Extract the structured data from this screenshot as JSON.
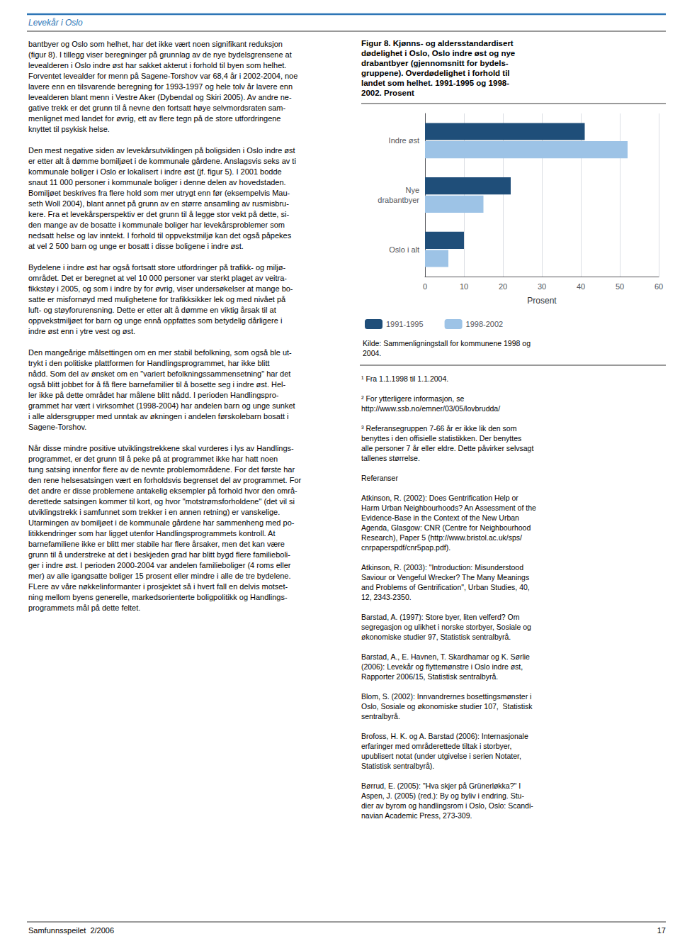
{
  "chart_data": {
    "type": "bar",
    "orientation": "horizontal",
    "title": "Figur 8. Kjønns- og aldersstandardisert\ndødelighet i Oslo, Oslo indre øst og nye\ndrabantbyer (gjennomsnitt for bydels-\ngruppene). Overdødelighet i forhold til\nlandet som helhet. 1991-1995 og 1998-\n2002. Prosent",
    "categories": [
      "Indre øst",
      "Nye\ndrabantbyer",
      "Oslo i alt"
    ],
    "series": [
      {
        "name": "1991-1995",
        "color": "#1f4e79",
        "values": [
          41,
          22,
          10
        ]
      },
      {
        "name": "1998-2002",
        "color": "#9dc3e6",
        "values": [
          52,
          15,
          6
        ]
      }
    ],
    "xlabel": "Prosent",
    "xlim": [
      0,
      60
    ],
    "xticks": [
      0,
      10,
      20,
      30,
      40,
      50,
      60
    ],
    "grid": true,
    "legend": "bottom",
    "annotations": [
      "Levekår i Oslo",
      "bantbyer og Oslo som helhet, har det ikke vært noen signifikant reduksjon\n(figur 8). I tillegg viser beregninger på grunnlag av de nye bydelsgrensene at\nlevealderen i Oslo indre øst har sakket akterut i forhold til byen som helhet.\nForventet levealder for menn på Sagene-Torshov var 68,4 år i 2002-2004, noe\nlavere enn en tilsvarende beregning for 1993-1997 og hele tolv år lavere enn\nlevealderen blant menn i Vestre Aker (Dybendal og Skiri 2005). Av andre ne-\ngative trekk er det grunn til å nevne den fortsatt høye selvmordsraten sam-\nmenlignet med landet for øvrig, ett av flere tegn på de store utfordringene\nknyttet til psykisk helse.\n\nDen mest negative siden av levekårsutviklingen på boligsiden i Oslo indre øst\ner etter alt å dømme bomiljøet i de kommunale gårdene. Anslagsvis seks av ti\nkommunale boliger i Oslo er lokalisert i indre øst (jf. figur 5). I 2001 bodde\nsnaut 11 000 personer i kommunale boliger i denne delen av hovedstaden.\nBomiljøet beskrives fra flere hold som mer utrygt enn før (eksempelvis Mau-\nseth Woll 2004), blant annet på grunn av en større ansamling av rusmisbru-\nkere. Fra et levekårsperspektiv er det grunn til å legge stor vekt på dette, si-\nden mange av de bosatte i kommunale boliger har levekårsproblemer som\nnedsatt helse og lav inntekt. I forhold til oppvekstmiljø kan det også påpekes\nat vel 2 500 barn og unge er bosatt i disse boligene i indre øst.\n\nBydelene i indre øst har også fortsatt store utfordringer på trafikk- og miljø-\nområdet. Det er beregnet at vel 10 000 personer var sterkt plaget av veitra-\nfikkstøy i 2005, og som i indre by for øvrig, viser undersøkelser at mange bo-\nsatte er misfornøyd med mulighetene for trafikksikker lek og med nivået på\nluft- og støyforurensning. Dette er etter alt å dømme en viktig årsak til at\noppvekstmiljøet for barn og unge ennå oppfattes som betydelig dårligere i\nindre øst enn i ytre vest og øst.\n\nDen mangeårige målsettingen om en mer stabil befolkning, som også ble ut-\ntrykt i den politiske plattformen for Handlingsprogrammet, har ikke blitt\nnådd. Som del av ønsket om en \"variert befolkningssammensetning\" har det\nogså blitt jobbet for å få flere barnefamilier til å bosette seg i indre øst. Hel-\nler ikke på dette området har målene blitt nådd. I perioden Handlingspro-\ngrammet har vært i virksomhet (1998-2004) har andelen barn og unge sunket\ni alle aldersgrupper med unntak av økningen i andelen førskolebarn bosatt i\nSagene-Torshov.\n\nNår disse mindre positive utviklingstrekkene skal vurderes i lys av Handlings-\nprogrammet, er det grunn til å peke på at programmet ikke har hatt noen\ntung satsing innenfor flere av de nevnte problemområdene. For det første har\nden rene helsesatsingen vært en forholdsvis begrenset del av programmet. For\ndet andre er disse problemene antakelig eksempler på forhold hvor den områ-\nderettede satsingen kommer til kort, og hvor \"motstrømsforholdene\" (det vil si\nutviklingstrekk i samfunnet som trekker i en annen retning) er vanskelige.\nUtarmingen av bomiljøet i de kommunale gårdene har sammenheng med po-\nlitikkendringer som har ligget utenfor Handlingsprogrammets kontroll. At\nbarnefamiliene ikke er blitt mer stabile har flere årsaker, men det kan være\ngrunn til å understreke at det i beskjeden grad har blitt bygd flere familieboli-\nger i indre øst. I perioden 2000-2004 var andelen familieboliger (4 roms eller\nmer) av alle igangsatte boliger 15 prosent eller mindre i alle de tre bydelene.\nFLere av våre nøkkelinformanter i prosjektet så i hvert fall en delvis motset-\nning mellom byens generelle, markedsorienterte boligpolitikk og Handlings-\nprogrammets mål på dette feltet.",
      "Kilde: Sammenligningstall for kommunene 1998 og\n2004.",
      "¹ Fra 1.1.1998 til 1.1.2004.\n\n² For ytterligere informasjon, se\nhttp://www.ssb.no/emner/03/05/lovbrudda/\n\n³ Referansegruppen 7-66 år er ikke lik den som\nbenyttes i den offisielle statistikken. Der benyttes\nalle personer 7 år eller eldre. Dette påvirker selvsagt\ntallenes størrelse.\n\nReferanser\n\nAtkinson, R. (2002): Does Gentrification Help or\nHarm Urban Neighbourhoods? An Assessment of the\nEvidence-Base in the Context of the New Urban\nAgenda, Glasgow: CNR (Centre for Neighbourhood\nResearch), Paper 5 (http://www.bristol.ac.uk/sps/\ncnrpaperspdf/cnr5pap.pdf).\n\nAtkinson, R. (2003): \"Introduction: Misunderstood\nSaviour or Vengeful Wrecker? The Many Meanings\nand Problems of Gentrification\", Urban Studies, 40,\n12, 2343-2350.\n\nBarstad, A. (1997): Store byer, liten velferd? Om\nsegregasjon og ulikhet i norske storbyer, Sosiale og\nøkonomiske studier 97, Statistisk sentralbyrå.\n\nBarstad, A., E. Havnen, T. Skardhamar og K. Sørlie\n(2006): Levekår og flyttemønstre i Oslo indre øst,\nRapporter 2006/15, Statistisk sentralbyrå.\n\nBlom, S. (2002): Innvandrernes bosettingsmønster i\nOslo, Sosiale og økonomiske studier 107,  Statistisk\nsentralbyrå.\n\nBrofoss, H. K. og A. Barstad (2006): Internasjonale\nerfaringer med områderettede tiltak i storbyer,\nupublisert notat (under utgivelse i serien Notater,\nStatistisk sentralbyrå).\n\nBørrud, E. (2005): \"Hva skjer på Grünerløkka?\" I\nAspen, J. (2005) (red.): By og byliv i endring. Stu-\ndier av byrom og handlingsrom i Oslo, Oslo: Scandi-\nnavian Academic Press, 273-309.",
      "Samfunnsspeilet  2/2006",
      "17"
    ]
  }
}
